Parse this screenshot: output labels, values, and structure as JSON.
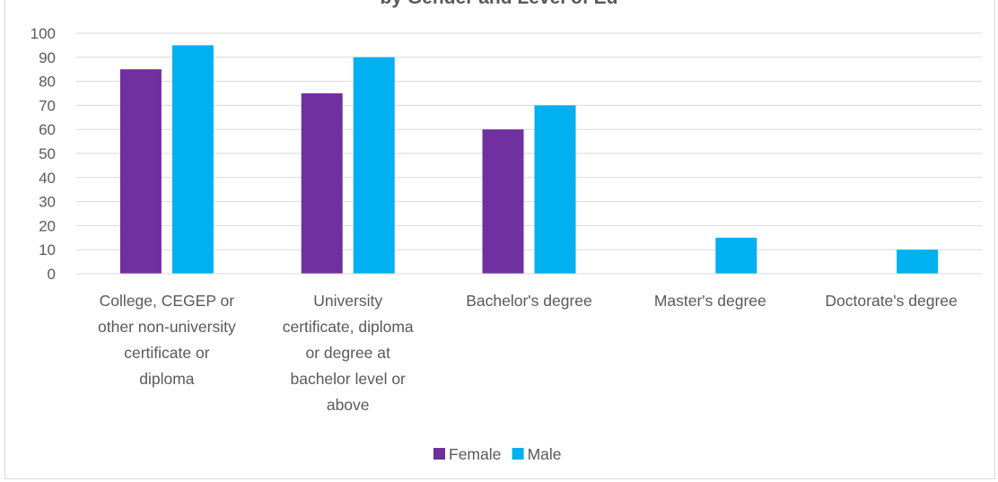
{
  "chart_data": {
    "type": "bar",
    "title": "by Gender and Level of Ed",
    "categories": [
      "College, CEGEP or other non-university certificate or diploma",
      "University certificate, diploma or degree at bachelor level or above",
      "Bachelor's degree",
      "Master's degree",
      "Doctorate's degree"
    ],
    "category_lines": [
      [
        "College, CEGEP or",
        "other non-university",
        "certificate or",
        "diploma"
      ],
      [
        "University",
        "certificate, diploma",
        "or degree at",
        "bachelor level or",
        "above"
      ],
      [
        "Bachelor's degree"
      ],
      [
        "Master's degree"
      ],
      [
        "Doctorate's degree"
      ]
    ],
    "series": [
      {
        "name": "Female",
        "color": "#7030a0",
        "values": [
          85,
          75,
          60,
          0,
          0
        ]
      },
      {
        "name": "Male",
        "color": "#00b0f0",
        "values": [
          95,
          90,
          70,
          15,
          10
        ]
      }
    ],
    "ylim": [
      0,
      100
    ],
    "yticks": [
      0,
      10,
      20,
      30,
      40,
      50,
      60,
      70,
      80,
      90,
      100
    ],
    "xlabel": "",
    "ylabel": "",
    "grid": true,
    "legend_position": "bottom"
  }
}
